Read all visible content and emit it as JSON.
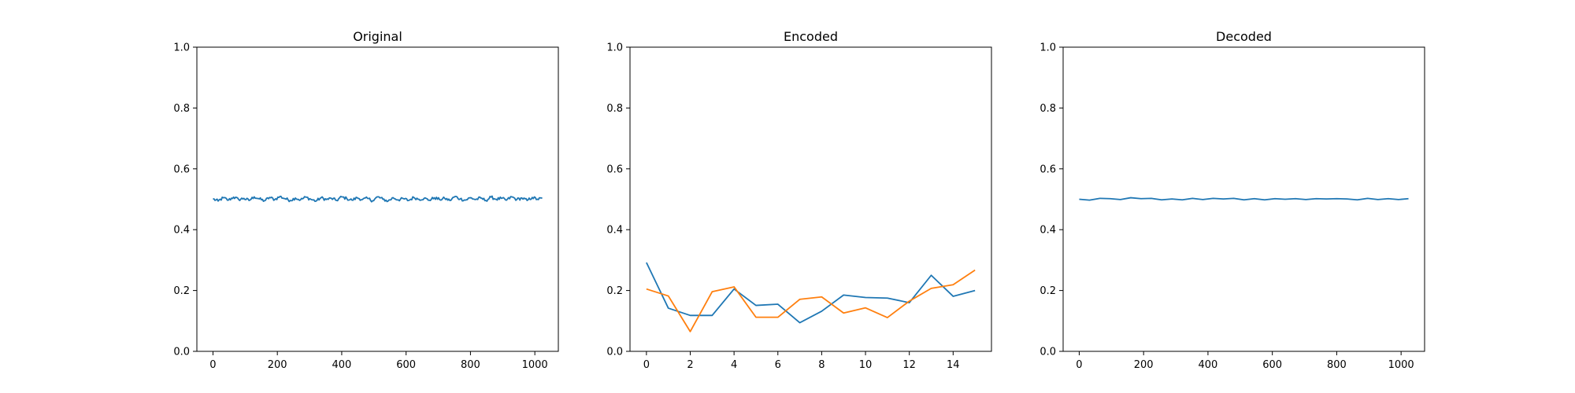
{
  "chart_data": [
    {
      "type": "line",
      "title": "Original",
      "xlabel": "",
      "ylabel": "",
      "xlim": [
        -50,
        1073
      ],
      "ylim": [
        0,
        1
      ],
      "xticks": [
        0,
        200,
        400,
        600,
        800,
        1000
      ],
      "yticks": [
        0.0,
        0.2,
        0.4,
        0.6,
        0.8,
        1.0
      ],
      "ytick_labels": [
        "0.0",
        "0.2",
        "0.4",
        "0.6",
        "0.8",
        "1.0"
      ],
      "grid": false,
      "noise_amplitude": 0.01,
      "series": [
        {
          "color": "#1f77b4",
          "x": [
            0,
            16,
            32,
            48,
            64,
            80,
            96,
            112,
            128,
            144,
            160,
            176,
            192,
            208,
            224,
            240,
            256,
            272,
            288,
            304,
            320,
            336,
            352,
            368,
            384,
            400,
            416,
            432,
            448,
            464,
            480,
            496,
            512,
            528,
            544,
            560,
            576,
            592,
            608,
            624,
            640,
            656,
            672,
            688,
            704,
            720,
            736,
            752,
            768,
            784,
            800,
            816,
            832,
            848,
            864,
            880,
            896,
            912,
            928,
            944,
            960,
            976,
            992,
            1008,
            1023
          ],
          "y": [
            0.501,
            0.494,
            0.505,
            0.497,
            0.507,
            0.499,
            0.503,
            0.496,
            0.508,
            0.501,
            0.495,
            0.506,
            0.499,
            0.509,
            0.502,
            0.496,
            0.504,
            0.498,
            0.507,
            0.5,
            0.494,
            0.505,
            0.499,
            0.503,
            0.496,
            0.508,
            0.502,
            0.497,
            0.505,
            0.499,
            0.503,
            0.495,
            0.508,
            0.5,
            0.494,
            0.505,
            0.498,
            0.502,
            0.496,
            0.506,
            0.5,
            0.503,
            0.497,
            0.505,
            0.499,
            0.503,
            0.496,
            0.509,
            0.501,
            0.497,
            0.505,
            0.499,
            0.504,
            0.496,
            0.507,
            0.5,
            0.503,
            0.497,
            0.508,
            0.499,
            0.504,
            0.496,
            0.506,
            0.5,
            0.503
          ]
        }
      ]
    },
    {
      "type": "line",
      "title": "Encoded",
      "xlabel": "",
      "ylabel": "",
      "xlim": [
        -0.75,
        15.75
      ],
      "ylim": [
        0,
        1
      ],
      "xticks": [
        0,
        2,
        4,
        6,
        8,
        10,
        12,
        14
      ],
      "yticks": [
        0.0,
        0.2,
        0.4,
        0.6,
        0.8,
        1.0
      ],
      "ytick_labels": [
        "0.0",
        "0.2",
        "0.4",
        "0.6",
        "0.8",
        "1.0"
      ],
      "grid": false,
      "series": [
        {
          "color": "#1f77b4",
          "x": [
            0,
            1,
            2,
            3,
            4,
            5,
            6,
            7,
            8,
            9,
            10,
            11,
            12,
            13,
            14,
            15
          ],
          "y": [
            0.292,
            0.142,
            0.118,
            0.118,
            0.205,
            0.151,
            0.155,
            0.094,
            0.132,
            0.185,
            0.177,
            0.175,
            0.16,
            0.25,
            0.181,
            0.2
          ]
        },
        {
          "color": "#ff7f0e",
          "x": [
            0,
            1,
            2,
            3,
            4,
            5,
            6,
            7,
            8,
            9,
            10,
            11,
            12,
            13,
            14,
            15
          ],
          "y": [
            0.205,
            0.182,
            0.065,
            0.196,
            0.212,
            0.112,
            0.112,
            0.171,
            0.179,
            0.126,
            0.143,
            0.111,
            0.165,
            0.207,
            0.219,
            0.267
          ]
        }
      ]
    },
    {
      "type": "line",
      "title": "Decoded",
      "xlabel": "",
      "ylabel": "",
      "xlim": [
        -50,
        1073
      ],
      "ylim": [
        0,
        1
      ],
      "xticks": [
        0,
        200,
        400,
        600,
        800,
        1000
      ],
      "yticks": [
        0.0,
        0.2,
        0.4,
        0.6,
        0.8,
        1.0
      ],
      "ytick_labels": [
        "0.0",
        "0.2",
        "0.4",
        "0.6",
        "0.8",
        "1.0"
      ],
      "grid": false,
      "series": [
        {
          "color": "#1f77b4",
          "x": [
            0,
            32,
            64,
            96,
            128,
            160,
            192,
            224,
            256,
            288,
            320,
            352,
            384,
            416,
            448,
            480,
            512,
            544,
            576,
            608,
            640,
            672,
            704,
            736,
            768,
            800,
            832,
            864,
            896,
            928,
            960,
            992,
            1023
          ],
          "y": [
            0.5,
            0.497,
            0.503,
            0.502,
            0.499,
            0.505,
            0.502,
            0.503,
            0.498,
            0.501,
            0.498,
            0.503,
            0.499,
            0.503,
            0.501,
            0.503,
            0.498,
            0.502,
            0.498,
            0.502,
            0.5,
            0.502,
            0.499,
            0.502,
            0.501,
            0.502,
            0.501,
            0.498,
            0.503,
            0.499,
            0.502,
            0.499,
            0.502
          ]
        }
      ]
    }
  ]
}
